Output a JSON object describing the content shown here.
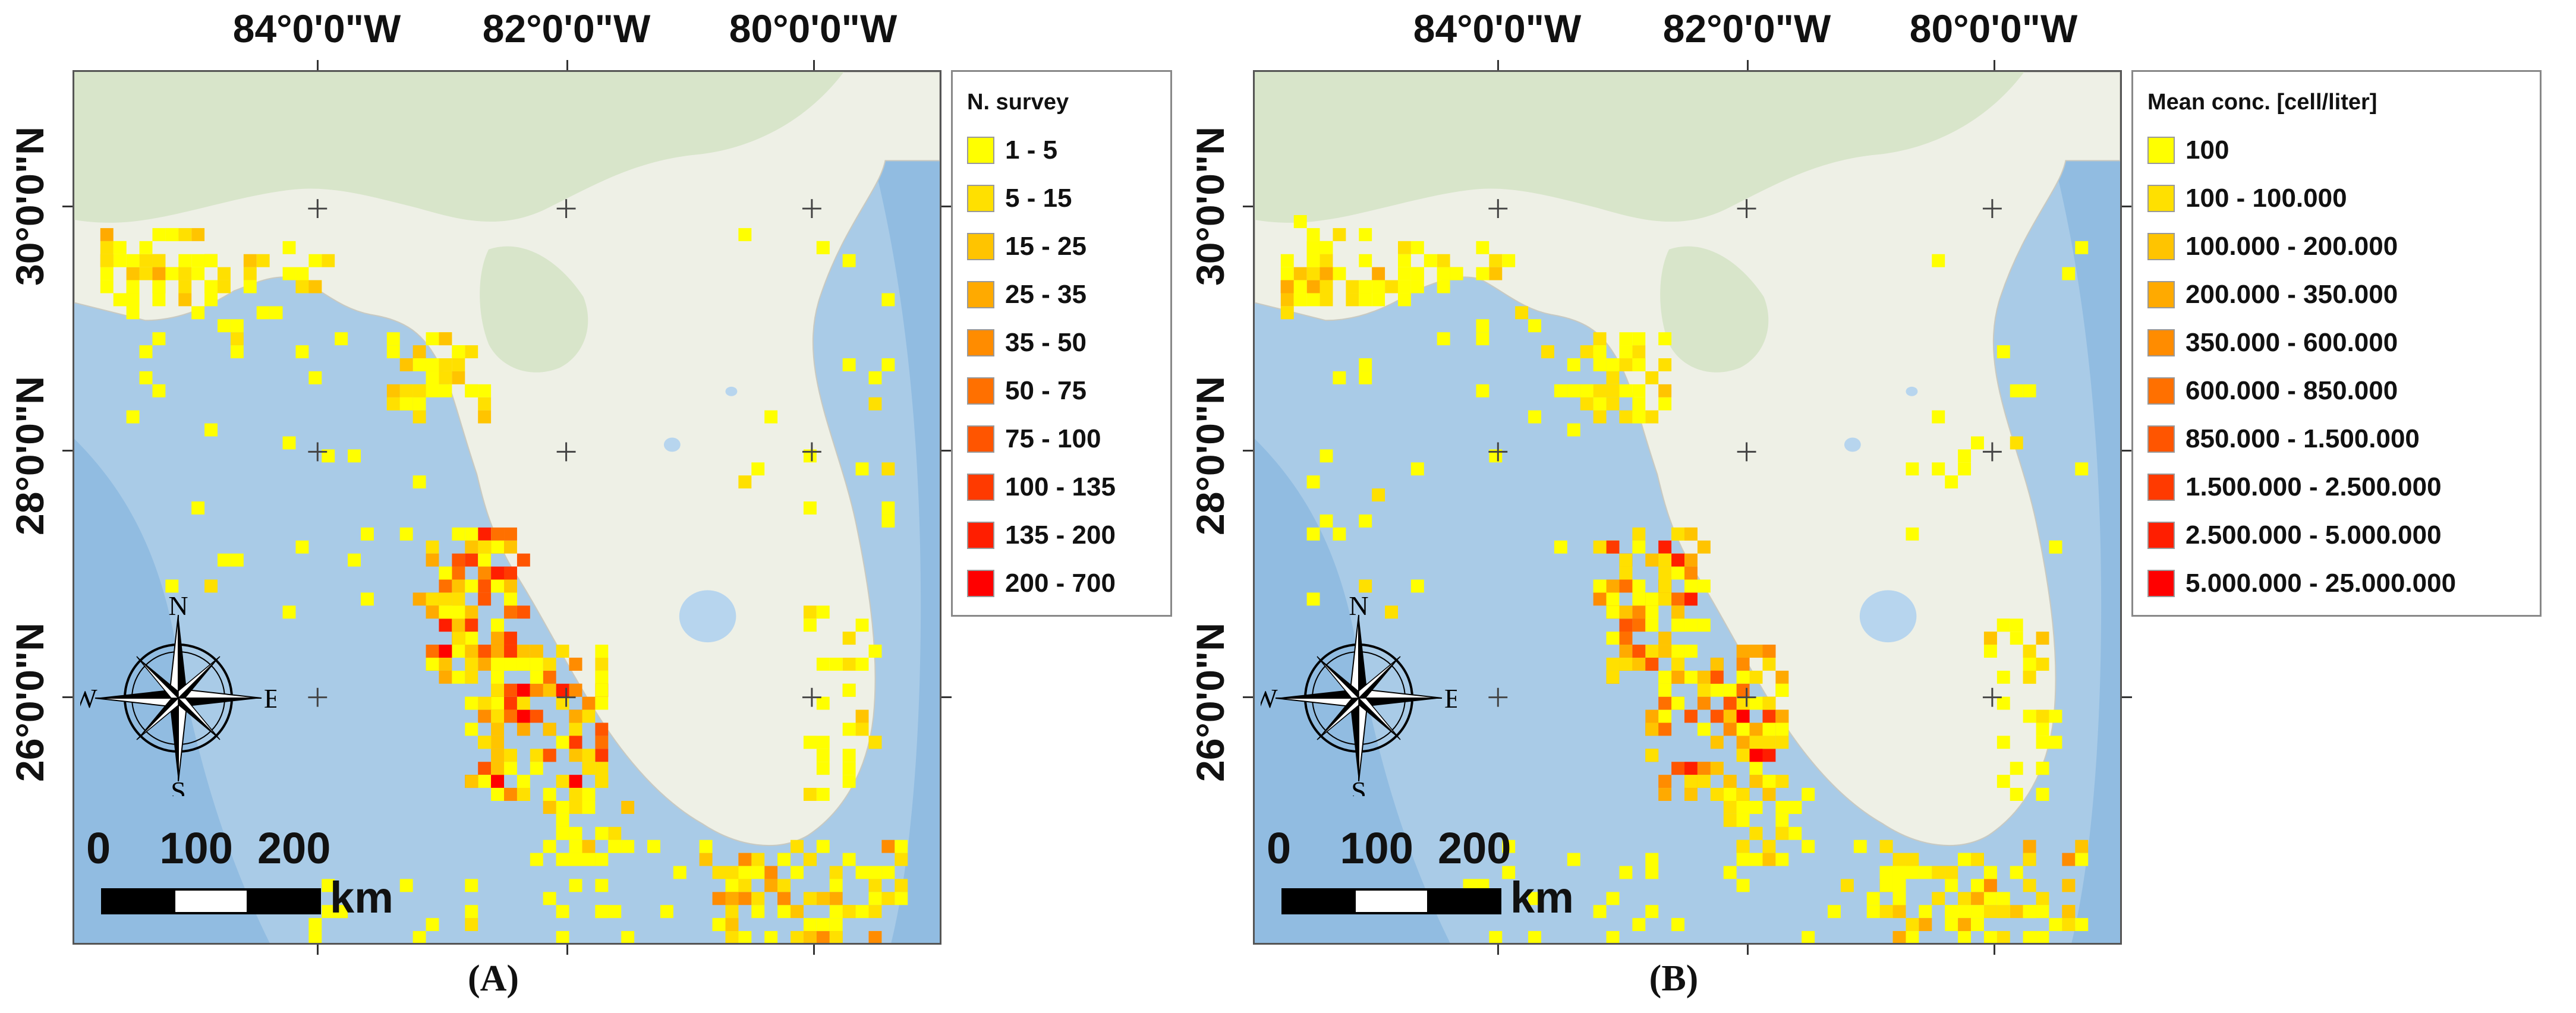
{
  "panels": [
    {
      "caption": "(A)",
      "legend": {
        "title": "N. survey",
        "items": [
          {
            "label": "1 - 5",
            "color": "#ffff00"
          },
          {
            "label": "5 - 15",
            "color": "#ffe000"
          },
          {
            "label": "15 - 25",
            "color": "#ffc400"
          },
          {
            "label": "25 - 35",
            "color": "#ffaa00"
          },
          {
            "label": "35 - 50",
            "color": "#ff8c00"
          },
          {
            "label": "50 - 75",
            "color": "#ff7000"
          },
          {
            "label": "75 - 100",
            "color": "#ff5500"
          },
          {
            "label": "100 - 135",
            "color": "#ff3a00"
          },
          {
            "label": "135 - 200",
            "color": "#ff1e00"
          },
          {
            "label": "200 - 700",
            "color": "#ff0000"
          }
        ]
      }
    },
    {
      "caption": "(B)",
      "legend": {
        "title": "Mean conc. [cell/liter]",
        "items": [
          {
            "label": "100",
            "color": "#ffff00"
          },
          {
            "label": "100 - 100.000",
            "color": "#ffe000"
          },
          {
            "label": "100.000 - 200.000",
            "color": "#ffc400"
          },
          {
            "label": "200.000 - 350.000",
            "color": "#ffaa00"
          },
          {
            "label": "350.000 - 600.000",
            "color": "#ff8c00"
          },
          {
            "label": "600.000 - 850.000",
            "color": "#ff7000"
          },
          {
            "label": "850.000 - 1.500.000",
            "color": "#ff5500"
          },
          {
            "label": "1.500.000 - 2.500.000",
            "color": "#ff3a00"
          },
          {
            "label": "2.500.000 - 5.000.000",
            "color": "#ff1e00"
          },
          {
            "label": "5.000.000 - 25.000.000",
            "color": "#ff0000"
          }
        ]
      }
    }
  ],
  "axes": {
    "longitude_labels": [
      "84°0'0\"W",
      "82°0'0\"W",
      "80°0'0\"W"
    ],
    "latitude_labels": [
      "30°0'0\"N",
      "28°0'0\"N",
      "26°0'0\"N"
    ]
  },
  "scale_bar": {
    "numbers": "0    100  200",
    "unit": "km"
  },
  "compass": {
    "north": "N",
    "south": "S",
    "east": "E",
    "west": "W",
    "icon": "compass-rose-icon"
  },
  "colors": {
    "sea": "#a9cbe7",
    "deep_sea": "#7eb0dc",
    "land": "#eef0e6",
    "vegetation": "#d4e3c4",
    "lakes": "#b7d5ee"
  }
}
